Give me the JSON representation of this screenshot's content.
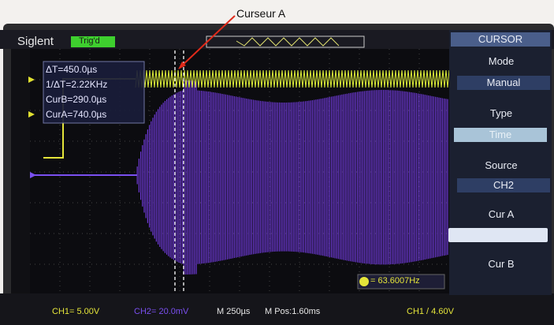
{
  "annotation": "Curseur A",
  "header": {
    "brand": "Siglent",
    "trigger_status": "Trig'd"
  },
  "menu": {
    "title": "CURSOR",
    "items": [
      {
        "label": "Mode",
        "value": "Manual"
      },
      {
        "label": "Type",
        "value": "Time"
      },
      {
        "label": "Source",
        "value": "CH2"
      },
      {
        "label": "Cur A"
      },
      {
        "label": "Cur B"
      }
    ]
  },
  "measurements": [
    "ΔT=450.0µs",
    "1/ΔT=2.22KHz",
    "CurB=290.0µs",
    "CurA=740.0µs"
  ],
  "frequency": "= 63.6007Hz",
  "footer": [
    "CH1= 5.00V",
    "CH2= 20.0mV",
    "M 250µs",
    "M Pos:1.60ms",
    "CH1 / 4.60V"
  ]
}
